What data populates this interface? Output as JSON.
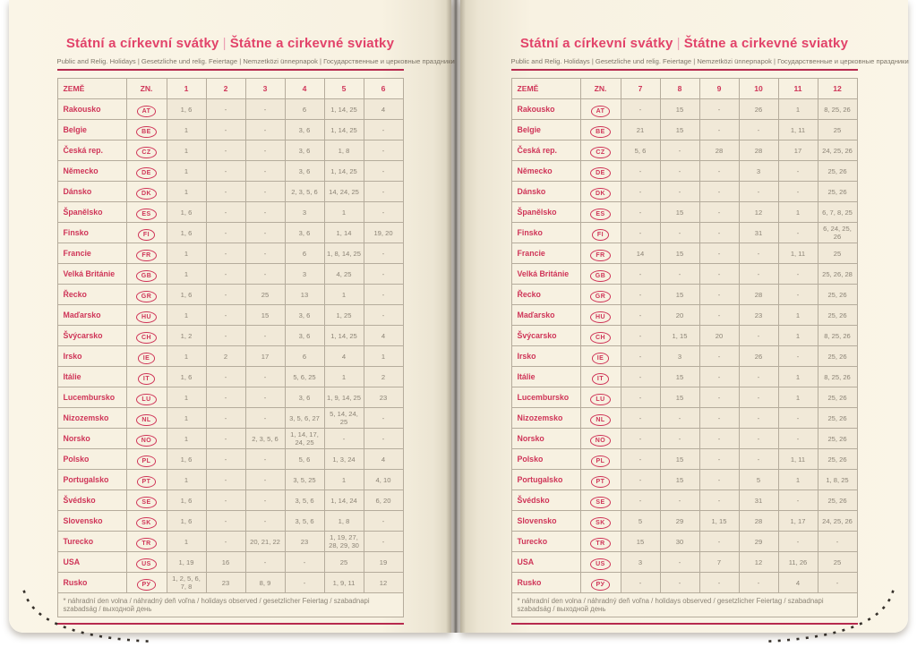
{
  "header": {
    "title_cs": "Státní a církevní svátky",
    "title_divider": "|",
    "title_sk": "Štátne a cirkevné sviatky",
    "subtitle": "Public and Relig. Holidays | Gesetzliche und relig. Feiertage | Nemzetközi ünnepnapok | Государственные и церковные праздники"
  },
  "table": {
    "country_header": "ZEMĚ",
    "code_header": "ZN.",
    "months_left": [
      "1",
      "2",
      "3",
      "4",
      "5",
      "6"
    ],
    "months_right": [
      "7",
      "8",
      "9",
      "10",
      "11",
      "12"
    ],
    "footnote": "* náhradní den volna / náhradný deň voľna / holidays observed / gesetzlicher Feiertag / szabadnapi szabadság / выходной день",
    "countries": [
      {
        "name": "Rakousko",
        "code": "AT",
        "h1": [
          "1, 6",
          "-",
          "-",
          "6",
          "1, 14, 25",
          "4"
        ],
        "h2": [
          "-",
          "15",
          "-",
          "26",
          "1",
          "8, 25, 26"
        ]
      },
      {
        "name": "Belgie",
        "code": "BE",
        "h1": [
          "1",
          "-",
          "-",
          "3, 6",
          "1, 14, 25",
          "-"
        ],
        "h2": [
          "21",
          "15",
          "-",
          "-",
          "1, 11",
          "25"
        ]
      },
      {
        "name": "Česká rep.",
        "code": "CZ",
        "h1": [
          "1",
          "-",
          "-",
          "3, 6",
          "1, 8",
          "-"
        ],
        "h2": [
          "5, 6",
          "-",
          "28",
          "28",
          "17",
          "24, 25, 26"
        ]
      },
      {
        "name": "Německo",
        "code": "DE",
        "h1": [
          "1",
          "-",
          "-",
          "3, 6",
          "1, 14, 25",
          "-"
        ],
        "h2": [
          "-",
          "-",
          "-",
          "3",
          "-",
          "25, 26"
        ]
      },
      {
        "name": "Dánsko",
        "code": "DK",
        "h1": [
          "1",
          "-",
          "-",
          "2, 3, 5, 6",
          "14, 24, 25",
          "-"
        ],
        "h2": [
          "-",
          "-",
          "-",
          "-",
          "-",
          "25, 26"
        ]
      },
      {
        "name": "Španělsko",
        "code": "ES",
        "h1": [
          "1, 6",
          "-",
          "-",
          "3",
          "1",
          "-"
        ],
        "h2": [
          "-",
          "15",
          "-",
          "12",
          "1",
          "6, 7, 8, 25"
        ]
      },
      {
        "name": "Finsko",
        "code": "FI",
        "h1": [
          "1, 6",
          "-",
          "-",
          "3, 6",
          "1, 14",
          "19, 20"
        ],
        "h2": [
          "-",
          "-",
          "-",
          "31",
          "-",
          "6, 24, 25, 26"
        ]
      },
      {
        "name": "Francie",
        "code": "FR",
        "h1": [
          "1",
          "-",
          "-",
          "6",
          "1, 8, 14, 25",
          "-"
        ],
        "h2": [
          "14",
          "15",
          "-",
          "-",
          "1, 11",
          "25"
        ]
      },
      {
        "name": "Velká Británie",
        "code": "GB",
        "h1": [
          "1",
          "-",
          "-",
          "3",
          "4, 25",
          "-"
        ],
        "h2": [
          "-",
          "-",
          "-",
          "-",
          "-",
          "25, 26, 28"
        ]
      },
      {
        "name": "Řecko",
        "code": "GR",
        "h1": [
          "1, 6",
          "-",
          "25",
          "13",
          "1",
          "-"
        ],
        "h2": [
          "-",
          "15",
          "-",
          "28",
          "-",
          "25, 26"
        ]
      },
      {
        "name": "Maďarsko",
        "code": "HU",
        "h1": [
          "1",
          "-",
          "15",
          "3, 6",
          "1, 25",
          "-"
        ],
        "h2": [
          "-",
          "20",
          "-",
          "23",
          "1",
          "25, 26"
        ]
      },
      {
        "name": "Švýcarsko",
        "code": "CH",
        "h1": [
          "1, 2",
          "-",
          "-",
          "3, 6",
          "1, 14, 25",
          "4"
        ],
        "h2": [
          "-",
          "1, 15",
          "20",
          "-",
          "1",
          "8, 25, 26"
        ]
      },
      {
        "name": "Irsko",
        "code": "IE",
        "h1": [
          "1",
          "2",
          "17",
          "6",
          "4",
          "1"
        ],
        "h2": [
          "-",
          "3",
          "-",
          "26",
          "-",
          "25, 26"
        ]
      },
      {
        "name": "Itálie",
        "code": "IT",
        "h1": [
          "1, 6",
          "-",
          "-",
          "5, 6, 25",
          "1",
          "2"
        ],
        "h2": [
          "-",
          "15",
          "-",
          "-",
          "1",
          "8, 25, 26"
        ]
      },
      {
        "name": "Lucembursko",
        "code": "LU",
        "h1": [
          "1",
          "-",
          "-",
          "3, 6",
          "1, 9, 14, 25",
          "23"
        ],
        "h2": [
          "-",
          "15",
          "-",
          "-",
          "1",
          "25, 26"
        ]
      },
      {
        "name": "Nizozemsko",
        "code": "NL",
        "h1": [
          "1",
          "-",
          "-",
          "3, 5, 6, 27",
          "5, 14, 24, 25",
          "-"
        ],
        "h2": [
          "-",
          "-",
          "-",
          "-",
          "-",
          "25, 26"
        ]
      },
      {
        "name": "Norsko",
        "code": "NO",
        "h1": [
          "1",
          "-",
          "2, 3, 5, 6",
          "1, 14, 17, 24, 25",
          "-",
          "-"
        ],
        "h2": [
          "-",
          "-",
          "-",
          "-",
          "-",
          "25, 26"
        ]
      },
      {
        "name": "Polsko",
        "code": "PL",
        "h1": [
          "1, 6",
          "-",
          "-",
          "5, 6",
          "1, 3, 24",
          "4"
        ],
        "h2": [
          "-",
          "15",
          "-",
          "-",
          "1, 11",
          "25, 26"
        ]
      },
      {
        "name": "Portugalsko",
        "code": "PT",
        "h1": [
          "1",
          "-",
          "-",
          "3, 5, 25",
          "1",
          "4, 10"
        ],
        "h2": [
          "-",
          "15",
          "-",
          "5",
          "1",
          "1, 8, 25"
        ]
      },
      {
        "name": "Švédsko",
        "code": "SE",
        "h1": [
          "1, 6",
          "-",
          "-",
          "3, 5, 6",
          "1, 14, 24",
          "6, 20"
        ],
        "h2": [
          "-",
          "-",
          "-",
          "31",
          "-",
          "25, 26"
        ]
      },
      {
        "name": "Slovensko",
        "code": "SK",
        "h1": [
          "1, 6",
          "-",
          "-",
          "3, 5, 6",
          "1, 8",
          "-"
        ],
        "h2": [
          "5",
          "29",
          "1, 15",
          "28",
          "1, 17",
          "24, 25, 26"
        ]
      },
      {
        "name": "Turecko",
        "code": "TR",
        "h1": [
          "1",
          "-",
          "20, 21, 22",
          "23",
          "1, 19, 27, 28, 29, 30",
          "-"
        ],
        "h2": [
          "15",
          "30",
          "-",
          "29",
          "-",
          "-"
        ]
      },
      {
        "name": "USA",
        "code": "US",
        "h1": [
          "1, 19",
          "16",
          "-",
          "-",
          "25",
          "19"
        ],
        "h2": [
          "3",
          "-",
          "7",
          "12",
          "11, 26",
          "25"
        ]
      },
      {
        "name": "Rusko",
        "code": "РУ",
        "h1": [
          "1, 2, 5, 6, 7, 8",
          "23",
          "8, 9",
          "-",
          "1, 9, 11",
          "12"
        ],
        "h2": [
          "-",
          "-",
          "-",
          "-",
          "4",
          "-"
        ]
      }
    ]
  },
  "colors": {
    "accent_red": "#cf3558",
    "title_pink": "#e2436a",
    "rule_red": "#b72a4e",
    "page_cream": "#f8f2e2"
  }
}
